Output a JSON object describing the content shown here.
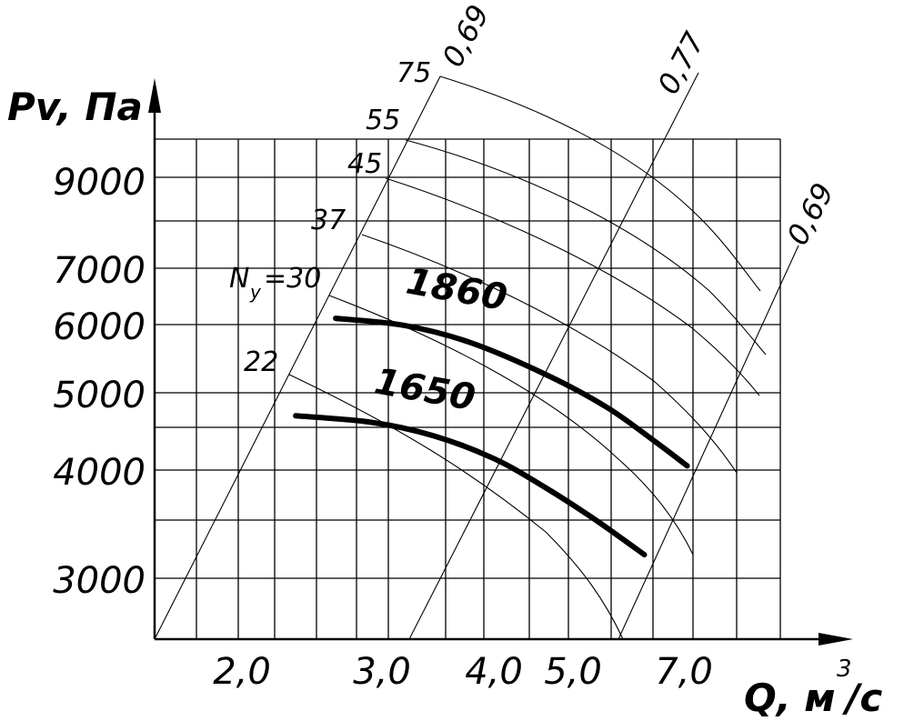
{
  "chart_data": {
    "type": "line",
    "title": "",
    "xlabel": "Q, м³/с",
    "xlabel_main": "Q, м",
    "xlabel_sup": "3",
    "xlabel_tail": "/с",
    "ylabel": "Pv, Па",
    "x_scale": "log",
    "y_scale": "log",
    "x_ticks": [
      "2,0",
      "3,0",
      "4,0",
      "5,0",
      "7,0"
    ],
    "y_ticks": [
      "3000",
      "4000",
      "5000",
      "6000",
      "7000",
      "9000"
    ],
    "series": [
      {
        "name": "1860",
        "x": [
          2.7,
          3.3,
          4.0,
          5.0,
          6.0,
          6.9,
          7.6
        ],
        "y": [
          6280,
          6150,
          5850,
          5320,
          4820,
          4360,
          4050
        ]
      },
      {
        "name": "1650",
        "x": [
          2.4,
          3.0,
          3.6,
          4.3,
          5.0,
          5.8,
          6.7
        ],
        "y": [
          4700,
          4610,
          4430,
          4140,
          3800,
          3450,
          3110
        ]
      }
    ],
    "efficiency_lines": [
      "0,69",
      "0,77",
      "0,69"
    ],
    "power_curves": {
      "prefix": "N",
      "prefix_sub": "у",
      "values": [
        "22",
        "=30",
        "37",
        "45",
        "55",
        "75"
      ]
    }
  }
}
